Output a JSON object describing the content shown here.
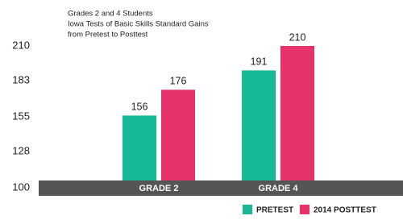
{
  "chart_data": {
    "type": "bar",
    "title": [
      "Grades 2 and 4 Students",
      "Iowa Tests of Basic Skills Standard Gains",
      "from Pretest to Posttest"
    ],
    "categories": [
      "GRADE 2",
      "GRADE 4"
    ],
    "series": [
      {
        "name": "PRETEST",
        "color": "#17b896",
        "values": [
          156,
          191
        ]
      },
      {
        "name": "2014 POSTTEST",
        "color": "#e8336a",
        "values": [
          176,
          210
        ]
      }
    ],
    "ylim": [
      100,
      210
    ],
    "yticks": [
      100,
      128,
      155,
      183,
      210
    ]
  }
}
